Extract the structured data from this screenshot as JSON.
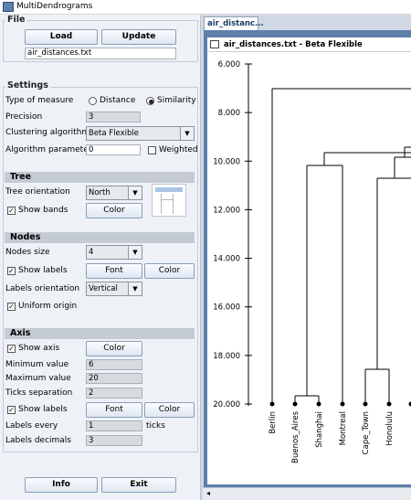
{
  "window": {
    "title": "MultiDendrograms"
  },
  "file": {
    "legend": "File",
    "load_label": "Load",
    "update_label": "Update",
    "filename": "air_distances.txt"
  },
  "settings": {
    "legend": "Settings",
    "measure_label": "Type of measure",
    "distance_label": "Distance",
    "similarity_label": "Similarity",
    "measure_selected": "Similarity",
    "precision_label": "Precision",
    "precision_value": "3",
    "algorithm_label": "Clustering algorithm",
    "algorithm_value": "Beta Flexible",
    "parameter_label": "Algorithm parameter",
    "parameter_value": "0",
    "weighted_label": "Weighted",
    "weighted_checked": false
  },
  "tree": {
    "heading": "Tree",
    "orientation_label": "Tree orientation",
    "orientation_value": "North",
    "show_bands_label": "Show bands",
    "show_bands_checked": true,
    "color_label": "Color"
  },
  "nodes": {
    "heading": "Nodes",
    "size_label": "Nodes size",
    "size_value": "4",
    "show_labels_label": "Show labels",
    "show_labels_checked": true,
    "font_label": "Font",
    "color_label": "Color",
    "orientation_label": "Labels orientation",
    "orientation_value": "Vertical",
    "uniform_origin_label": "Uniform origin",
    "uniform_origin_checked": true
  },
  "axis": {
    "heading": "Axis",
    "show_axis_label": "Show axis",
    "show_axis_checked": true,
    "color_label": "Color",
    "min_label": "Minimum value",
    "min_value": "6",
    "max_label": "Maximum value",
    "max_value": "20",
    "ticks_label": "Ticks separation",
    "ticks_value": "2",
    "show_labels_label": "Show labels",
    "show_labels_checked": true,
    "font_label": "Font",
    "labels_color_label": "Color",
    "every_label": "Labels every",
    "every_value": "1",
    "every_unit": "ticks",
    "decimals_label": "Labels decimals",
    "decimals_value": "3"
  },
  "footer": {
    "info_label": "Info",
    "exit_label": "Exit"
  },
  "tab": {
    "label": "air_distanc..."
  },
  "dendro_window": {
    "title": "air_distances.txt - Beta Flexible"
  },
  "dendrogram": {
    "axis_ticks": [
      "6.000",
      "8.000",
      "10.000",
      "12.000",
      "14.000",
      "16.000",
      "18.000",
      "20.000"
    ],
    "leaves": [
      "Berlin",
      "Buenos_Aires",
      "Shanghai",
      "Montreal",
      "Cape_Town",
      "Honolulu"
    ],
    "node_color": "#000000"
  }
}
